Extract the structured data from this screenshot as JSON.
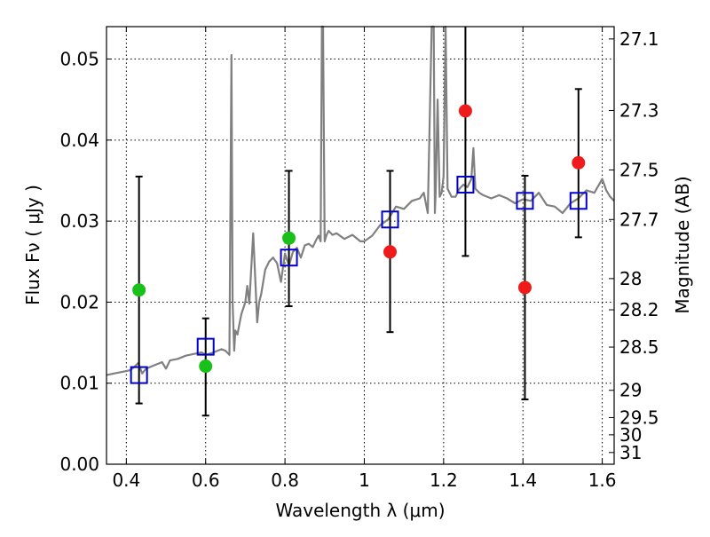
{
  "chart_data": {
    "type": "scatter",
    "title": "",
    "xlabel": "Wavelength  λ (μm)",
    "ylabel": "Flux  Fν  ( μJy )",
    "ylabel_right": "Magnitude (AB)",
    "xlim": [
      0.35,
      1.63
    ],
    "ylim": [
      0.0,
      0.054
    ],
    "grid": true,
    "legend": "none",
    "x_ticks": [
      0.4,
      0.6,
      0.8,
      1.0,
      1.2,
      1.4,
      1.6
    ],
    "x_tick_labels": [
      "0.4",
      "0.6",
      "0.8",
      "1",
      "1.2",
      "1.4",
      "1.6"
    ],
    "y_ticks": [
      0.0,
      0.01,
      0.02,
      0.03,
      0.04,
      0.05
    ],
    "y_tick_labels": [
      "0.00",
      "0.01",
      "0.02",
      "0.03",
      "0.04",
      "0.05"
    ],
    "right_ticks": [
      27.1,
      27.3,
      27.5,
      27.7,
      28,
      28.2,
      28.5,
      29,
      29.5,
      30,
      31
    ],
    "right_tick_labels": [
      "27.1",
      "27.3",
      "27.5",
      "27.7",
      "28",
      "28.2",
      "28.5",
      "29",
      "29.5",
      "30",
      "31"
    ],
    "colors": {
      "spectrum": "#808080",
      "green_points": "#19c019",
      "red_points": "#ef1b1b",
      "model_boxes": "#0000cc",
      "error_bars": "#000000"
    },
    "spectrum": {
      "name": "",
      "x": [
        0.35,
        0.37,
        0.39,
        0.41,
        0.42,
        0.43,
        0.44,
        0.45,
        0.47,
        0.49,
        0.5,
        0.51,
        0.53,
        0.55,
        0.57,
        0.59,
        0.6,
        0.62,
        0.64,
        0.65,
        0.66,
        0.665,
        0.668,
        0.672,
        0.675,
        0.68,
        0.69,
        0.7,
        0.705,
        0.71,
        0.72,
        0.73,
        0.735,
        0.74,
        0.75,
        0.76,
        0.77,
        0.78,
        0.79,
        0.8,
        0.81,
        0.82,
        0.83,
        0.84,
        0.85,
        0.86,
        0.87,
        0.88,
        0.885,
        0.89,
        0.893,
        0.896,
        0.9,
        0.905,
        0.91,
        0.92,
        0.93,
        0.95,
        0.97,
        0.99,
        1.0,
        1.02,
        1.04,
        1.06,
        1.08,
        1.1,
        1.12,
        1.14,
        1.15,
        1.16,
        1.17,
        1.175,
        1.178,
        1.18,
        1.185,
        1.19,
        1.195,
        1.2,
        1.205,
        1.21,
        1.22,
        1.23,
        1.24,
        1.25,
        1.26,
        1.27,
        1.275,
        1.28,
        1.29,
        1.3,
        1.32,
        1.34,
        1.36,
        1.38,
        1.4,
        1.42,
        1.44,
        1.46,
        1.48,
        1.5,
        1.52,
        1.54,
        1.56,
        1.58,
        1.6,
        1.61,
        1.62,
        1.63
      ],
      "y": [
        0.011,
        0.0112,
        0.0114,
        0.0116,
        0.012,
        0.0125,
        0.0112,
        0.0118,
        0.0122,
        0.0126,
        0.0118,
        0.0128,
        0.013,
        0.0134,
        0.0136,
        0.0138,
        0.0135,
        0.0138,
        0.0142,
        0.014,
        0.0135,
        0.0505,
        0.02,
        0.014,
        0.0165,
        0.016,
        0.0185,
        0.02,
        0.022,
        0.0198,
        0.0285,
        0.0175,
        0.02,
        0.021,
        0.024,
        0.025,
        0.0255,
        0.0248,
        0.0225,
        0.026,
        0.0245,
        0.0262,
        0.0267,
        0.0255,
        0.027,
        0.0272,
        0.0268,
        0.0278,
        0.0282,
        0.0275,
        0.054,
        0.054,
        0.0275,
        0.0283,
        0.0288,
        0.0283,
        0.0285,
        0.0278,
        0.0283,
        0.0275,
        0.0275,
        0.0282,
        0.0295,
        0.0302,
        0.0318,
        0.0315,
        0.0325,
        0.0328,
        0.0335,
        0.031,
        0.054,
        0.054,
        0.031,
        0.0335,
        0.045,
        0.033,
        0.0335,
        0.0355,
        0.054,
        0.034,
        0.033,
        0.033,
        0.034,
        0.0345,
        0.0342,
        0.0352,
        0.039,
        0.034,
        0.0335,
        0.0332,
        0.0328,
        0.0332,
        0.0328,
        0.0322,
        0.0327,
        0.0325,
        0.0335,
        0.032,
        0.0318,
        0.031,
        0.0322,
        0.0328,
        0.0338,
        0.0335,
        0.0352,
        0.0338,
        0.033,
        0.0325
      ]
    },
    "green_points": {
      "name": "",
      "x": [
        0.432,
        0.6,
        0.81
      ],
      "y": [
        0.0215,
        0.0121,
        0.0279
      ]
    },
    "red_points": {
      "name": "",
      "x": [
        1.065,
        1.255,
        1.405,
        1.54
      ],
      "y": [
        0.0262,
        0.0436,
        0.0218,
        0.0372
      ]
    },
    "model_boxes": {
      "name": "",
      "x": [
        0.432,
        0.6,
        0.81,
        1.065,
        1.255,
        1.405,
        1.54
      ],
      "y": [
        0.011,
        0.0145,
        0.0255,
        0.0302,
        0.0345,
        0.0325,
        0.0325
      ]
    },
    "error_bars": {
      "x": [
        0.432,
        0.6,
        0.81,
        1.065,
        1.255,
        1.405,
        1.54
      ],
      "low": [
        0.0075,
        0.006,
        0.0195,
        0.0163,
        0.0257,
        0.008,
        0.028
      ],
      "high": [
        0.0355,
        0.018,
        0.0362,
        0.0362,
        0.054,
        0.0356,
        0.0463
      ]
    }
  }
}
